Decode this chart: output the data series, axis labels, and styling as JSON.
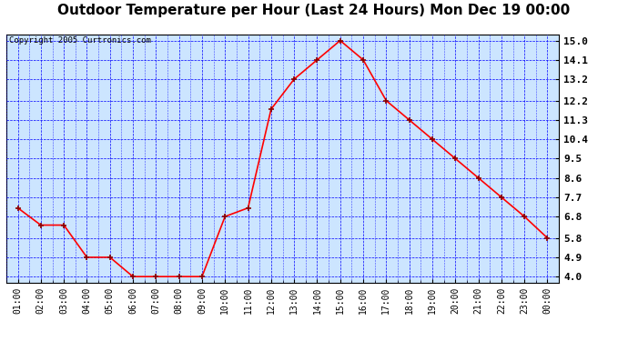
{
  "title": "Outdoor Temperature per Hour (Last 24 Hours) Mon Dec 19 00:00",
  "copyright": "Copyright 2005 Curtronics.com",
  "x_labels": [
    "01:00",
    "02:00",
    "03:00",
    "04:00",
    "05:00",
    "06:00",
    "07:00",
    "08:00",
    "09:00",
    "10:00",
    "11:00",
    "12:00",
    "13:00",
    "14:00",
    "15:00",
    "16:00",
    "17:00",
    "18:00",
    "19:00",
    "20:00",
    "21:00",
    "22:00",
    "23:00",
    "00:00"
  ],
  "y_values": [
    7.2,
    6.4,
    6.4,
    4.9,
    4.9,
    4.0,
    4.0,
    4.0,
    4.0,
    6.8,
    7.2,
    11.8,
    13.2,
    14.1,
    15.0,
    14.1,
    12.2,
    11.3,
    10.4,
    9.5,
    8.6,
    7.7,
    6.8,
    5.8
  ],
  "y_ticks": [
    4.0,
    4.9,
    5.8,
    6.8,
    7.7,
    8.6,
    9.5,
    10.4,
    11.3,
    12.2,
    13.2,
    14.1,
    15.0
  ],
  "ylim": [
    3.7,
    15.3
  ],
  "line_color": "red",
  "bg_color": "#cce5ff",
  "grid_color": "blue",
  "title_fontsize": 11,
  "copyright_fontsize": 6.5
}
